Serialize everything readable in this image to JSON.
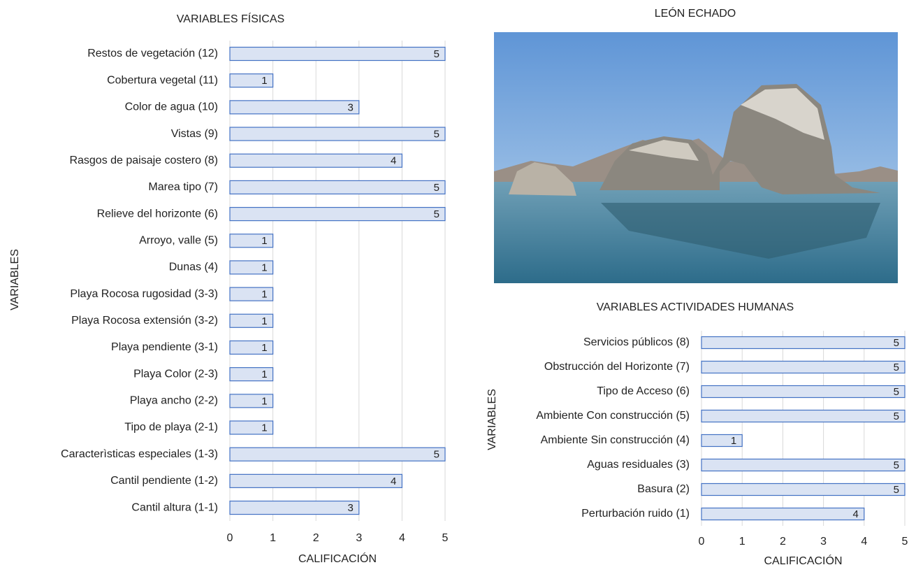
{
  "chart_data": [
    {
      "type": "bar",
      "orientation": "horizontal",
      "title": "VARIABLES FÍSICAS",
      "categories": [
        "Restos de vegetación (12)",
        "Cobertura vegetal (11)",
        "Color de agua (10)",
        "Vistas (9)",
        "Rasgos de paisaje costero (8)",
        "Marea tipo (7)",
        "Relieve del horizonte (6)",
        "Arroyo, valle (5)",
        "Dunas (4)",
        "Playa Rocosa rugosidad (3-3)",
        "Playa Rocosa extensión (3-2)",
        "Playa pendiente (3-1)",
        "Playa Color (2-3)",
        "Playa ancho (2-2)",
        "Tipo de playa (2-1)",
        "Caracterìsticas especiales (1-3)",
        "Cantil pendiente (1-2)",
        "Cantil altura (1-1)"
      ],
      "values": [
        5,
        1,
        3,
        5,
        4,
        5,
        5,
        1,
        1,
        1,
        1,
        1,
        1,
        1,
        1,
        5,
        4,
        3
      ],
      "color": "#dae3f3",
      "edge_color": "#4472c4",
      "xlim": [
        0,
        5
      ],
      "xticks": [
        0,
        1,
        2,
        3,
        4,
        5
      ],
      "grid": true,
      "xlabel": "CALIFICACIÓN",
      "ylabel": "VARIABLES"
    },
    {
      "type": "bar",
      "orientation": "horizontal",
      "title": "VARIABLES ACTIVIDADES HUMANAS",
      "categories": [
        "Servicios públicos (8)",
        "Obstrucción del Horizonte (7)",
        "Tipo de Acceso (6)",
        "Ambiente Con construcción (5)",
        "Ambiente Sin construcción (4)",
        "Aguas residuales (3)",
        "Basura (2)",
        "Perturbación ruido (1)"
      ],
      "values": [
        5,
        5,
        5,
        5,
        1,
        5,
        5,
        4
      ],
      "color": "#dae3f3",
      "edge_color": "#4472c4",
      "xlim": [
        0,
        5
      ],
      "xticks": [
        0,
        1,
        2,
        3,
        4,
        5
      ],
      "grid": true,
      "xlabel": "CALIFICACIÓN",
      "ylabel": "VARIABLES"
    }
  ],
  "photo": {
    "title": "LEÓN ECHADO"
  }
}
